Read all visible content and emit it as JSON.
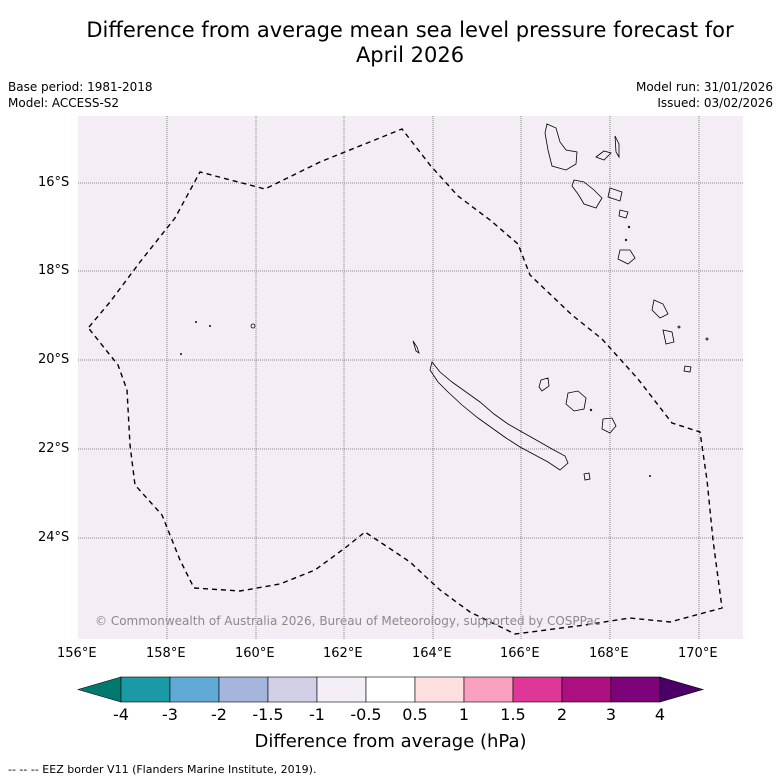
{
  "title_line1": "Difference from average mean sea level pressure forecast for",
  "title_line2": "April 2026",
  "base_period": "Base period: 1981-2018",
  "model": "Model: ACCESS-S2",
  "model_run": "Model run: 31/01/2026",
  "issued": "Issued: 03/02/2026",
  "map": {
    "background_color": "#f5edf5",
    "lon_range": [
      156,
      171
    ],
    "lat_range": [
      -26,
      -14.5
    ],
    "lat_labels": [
      "16°S",
      "18°S",
      "20°S",
      "22°S",
      "24°S"
    ],
    "lon_labels": [
      "156°E",
      "158°E",
      "160°E",
      "162°E",
      "164°E",
      "166°E",
      "168°E",
      "170°E"
    ],
    "copyright": "© Commonwealth of Australia 2026, Bureau of Meteorology, supported by COSPPac",
    "legend_entry": "--  --  -- EEZ border V11 (Flanders Marine Institute, 2019)."
  },
  "colorbar": {
    "ticks": [
      "-4",
      "-3",
      "-2",
      "-1.5",
      "-1",
      "-0.5",
      "0.5",
      "1",
      "1.5",
      "2",
      "3",
      "4"
    ],
    "colors": [
      "#007a6e",
      "#1b9aa6",
      "#62aad6",
      "#a5b5dd",
      "#d2d0e6",
      "#f3eef8",
      "#ffffff",
      "#ffdfdf",
      "#f99fbf",
      "#de3797",
      "#ad0f80",
      "#7d037b",
      "#4a0066"
    ],
    "label": "Difference from average (hPa)"
  }
}
